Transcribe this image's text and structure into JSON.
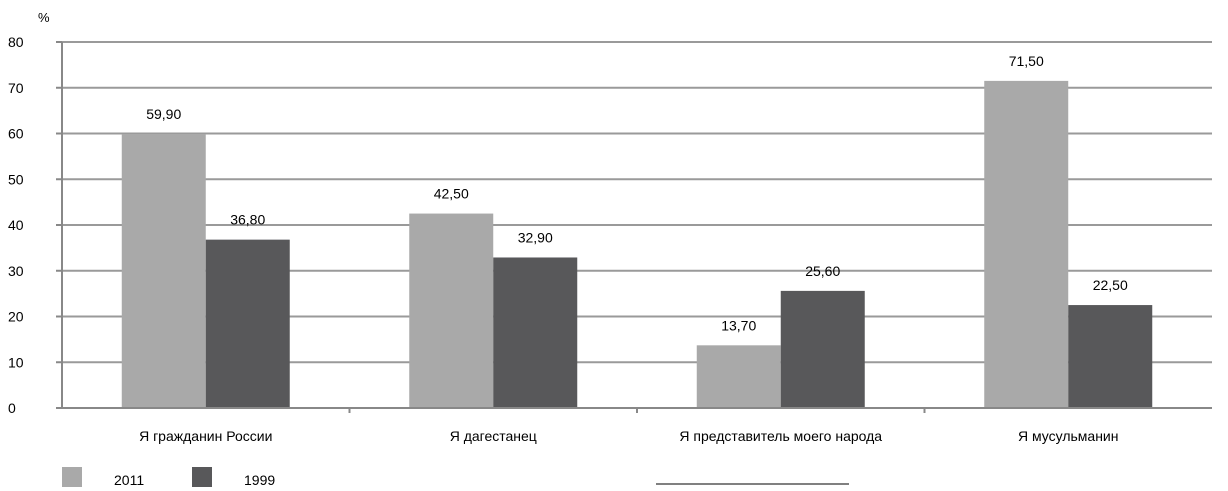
{
  "chart_data": {
    "type": "bar",
    "ylabel": "%",
    "ylim": [
      0,
      80
    ],
    "yticks": [
      0,
      10,
      20,
      30,
      40,
      50,
      60,
      70,
      80
    ],
    "grid": true,
    "legend_position": "bottom-left",
    "categories": [
      "Я гражданин России",
      "Я дагестанец",
      "Я представитель моего народа",
      "Я мусульманин"
    ],
    "series": [
      {
        "name": "2011",
        "color": "#a9a9a9",
        "values": [
          59.9,
          42.5,
          13.7,
          71.5
        ],
        "labels": [
          "59,90",
          "42,50",
          "13,70",
          "71,50"
        ]
      },
      {
        "name": "1999",
        "color": "#58585a",
        "values": [
          36.8,
          32.9,
          25.6,
          22.5
        ],
        "labels": [
          "36,80",
          "32,90",
          "25,60",
          "22,50"
        ]
      }
    ]
  }
}
